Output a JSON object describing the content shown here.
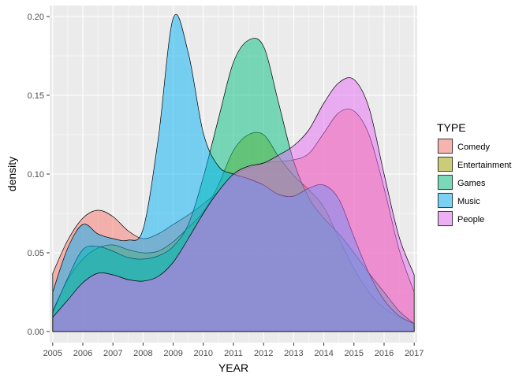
{
  "chart_data": {
    "type": "area",
    "subtype": "density",
    "xlabel": "YEAR",
    "ylabel": "density",
    "xlim": [
      2004.9,
      2017.1
    ],
    "ylim": [
      -0.007,
      0.207
    ],
    "x_ticks": [
      "2005",
      "2006",
      "2007",
      "2008",
      "2009",
      "2010",
      "2011",
      "2012",
      "2013",
      "2014",
      "2015",
      "2016",
      "2017"
    ],
    "y_ticks": [
      "0.00",
      "0.05",
      "0.10",
      "0.15",
      "0.20"
    ],
    "grid": true,
    "legend": {
      "title": "TYPE",
      "position": "right"
    },
    "series": [
      {
        "name": "Comedy",
        "color": "#F8766D",
        "x": [
          2005,
          2005.5,
          2006,
          2006.5,
          2007,
          2007.5,
          2008,
          2008.5,
          2009,
          2009.5,
          2010,
          2010.5,
          2011,
          2011.5,
          2012,
          2012.5,
          2013,
          2013.5,
          2014,
          2014.5,
          2015,
          2015.5,
          2016,
          2016.5,
          2017
        ],
        "y": [
          0.037,
          0.058,
          0.072,
          0.077,
          0.073,
          0.064,
          0.059,
          0.062,
          0.068,
          0.074,
          0.081,
          0.089,
          0.099,
          0.104,
          0.107,
          0.108,
          0.109,
          0.113,
          0.126,
          0.139,
          0.14,
          0.125,
          0.091,
          0.052,
          0.025
        ]
      },
      {
        "name": "Entertainment",
        "color": "#A3A500",
        "x": [
          2005,
          2005.5,
          2006,
          2006.5,
          2007,
          2007.5,
          2008,
          2008.5,
          2009,
          2009.5,
          2010,
          2010.5,
          2011,
          2011.5,
          2012,
          2012.5,
          2013,
          2013.5,
          2014,
          2014.5,
          2015,
          2015.5,
          2016,
          2016.5,
          2017
        ],
        "y": [
          0.013,
          0.033,
          0.046,
          0.053,
          0.055,
          0.052,
          0.05,
          0.051,
          0.057,
          0.066,
          0.076,
          0.093,
          0.115,
          0.125,
          0.125,
          0.111,
          0.099,
          0.09,
          0.079,
          0.059,
          0.04,
          0.025,
          0.015,
          0.009,
          0.005
        ]
      },
      {
        "name": "Games",
        "color": "#00BF7D",
        "x": [
          2005,
          2005.5,
          2006,
          2006.5,
          2007,
          2007.5,
          2008,
          2008.5,
          2009,
          2009.5,
          2010,
          2010.5,
          2011,
          2011.5,
          2012,
          2012.5,
          2013,
          2013.5,
          2014,
          2014.5,
          2015,
          2015.5,
          2016,
          2016.5,
          2017
        ],
        "y": [
          0.012,
          0.034,
          0.052,
          0.054,
          0.051,
          0.047,
          0.046,
          0.048,
          0.054,
          0.068,
          0.098,
          0.135,
          0.171,
          0.185,
          0.181,
          0.145,
          0.108,
          0.085,
          0.072,
          0.062,
          0.05,
          0.037,
          0.025,
          0.013,
          0.005
        ]
      },
      {
        "name": "Music",
        "color": "#00B0F6",
        "x": [
          2005,
          2005.5,
          2006,
          2006.5,
          2007,
          2007.5,
          2008,
          2008.5,
          2009,
          2009.5,
          2010,
          2010.5,
          2011,
          2011.5,
          2012,
          2012.5,
          2013,
          2013.5,
          2014,
          2014.5,
          2015,
          2015.5,
          2016,
          2016.5,
          2017
        ],
        "y": [
          0.025,
          0.053,
          0.068,
          0.062,
          0.059,
          0.058,
          0.065,
          0.122,
          0.199,
          0.177,
          0.126,
          0.105,
          0.1,
          0.097,
          0.093,
          0.087,
          0.086,
          0.091,
          0.093,
          0.084,
          0.06,
          0.037,
          0.02,
          0.01,
          0.005
        ]
      },
      {
        "name": "People",
        "color": "#E76BF3",
        "x": [
          2005,
          2005.5,
          2006,
          2006.5,
          2007,
          2007.5,
          2008,
          2008.5,
          2009,
          2009.5,
          2010,
          2010.5,
          2011,
          2011.5,
          2012,
          2012.5,
          2013,
          2013.5,
          2014,
          2014.5,
          2015,
          2015.5,
          2016,
          2016.5,
          2017
        ],
        "y": [
          0.009,
          0.02,
          0.031,
          0.037,
          0.036,
          0.033,
          0.032,
          0.035,
          0.044,
          0.059,
          0.075,
          0.089,
          0.1,
          0.105,
          0.107,
          0.112,
          0.118,
          0.128,
          0.145,
          0.158,
          0.16,
          0.142,
          0.1,
          0.06,
          0.036
        ]
      }
    ]
  }
}
